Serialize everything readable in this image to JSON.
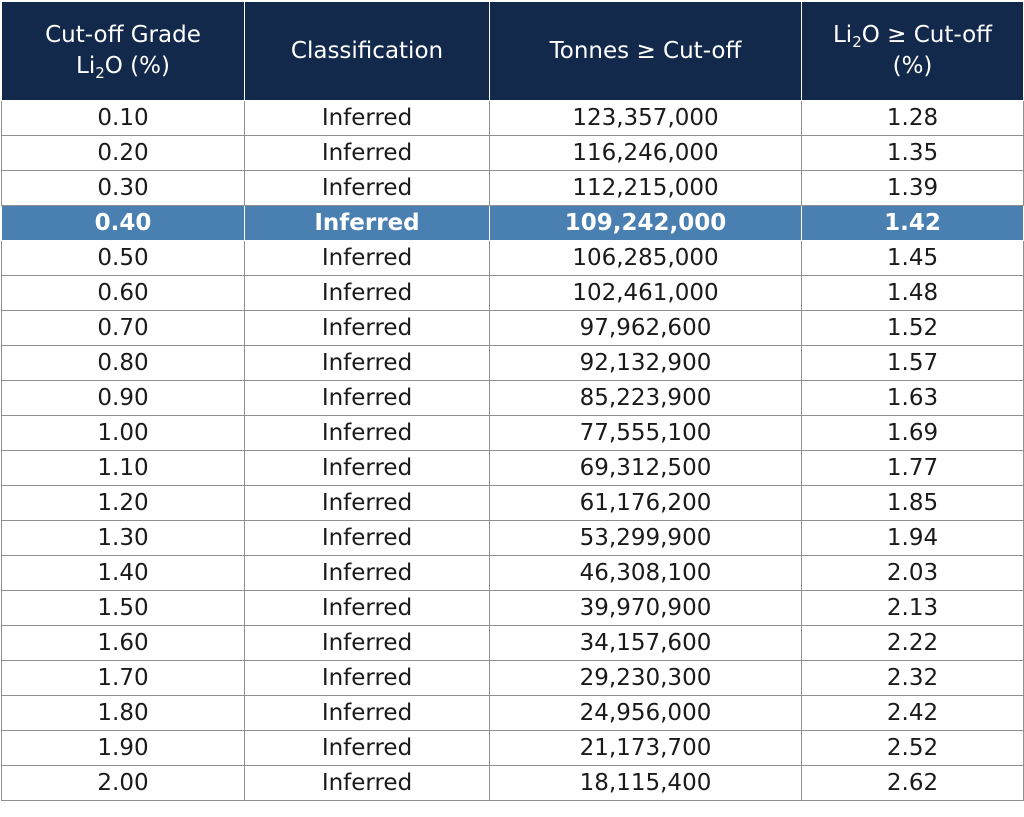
{
  "header": {
    "col1_line1": "Cut-off Grade",
    "col1_li": "Li",
    "col1_sub": "2",
    "col1_rest": "O (%)",
    "col2": "Classification",
    "col3": "Tonnes ≥ Cut-off",
    "col4_li": "Li",
    "col4_sub": "2",
    "col4_rest": "O ≥ Cut-off",
    "col4_line2": "(%)"
  },
  "highlight_color": "#4a7fb2",
  "header_color": "#13294b",
  "rows": [
    {
      "grade": "0.10",
      "classification": "Inferred",
      "tonnes": "123,357,000",
      "li2o": "1.28"
    },
    {
      "grade": "0.20",
      "classification": "Inferred",
      "tonnes": "116,246,000",
      "li2o": "1.35"
    },
    {
      "grade": "0.30",
      "classification": "Inferred",
      "tonnes": "112,215,000",
      "li2o": "1.39"
    },
    {
      "grade": "0.40",
      "classification": "Inferred",
      "tonnes": "109,242,000",
      "li2o": "1.42",
      "highlight": true
    },
    {
      "grade": "0.50",
      "classification": "Inferred",
      "tonnes": "106,285,000",
      "li2o": "1.45"
    },
    {
      "grade": "0.60",
      "classification": "Inferred",
      "tonnes": "102,461,000",
      "li2o": "1.48"
    },
    {
      "grade": "0.70",
      "classification": "Inferred",
      "tonnes": "97,962,600",
      "li2o": "1.52"
    },
    {
      "grade": "0.80",
      "classification": "Inferred",
      "tonnes": "92,132,900",
      "li2o": "1.57"
    },
    {
      "grade": "0.90",
      "classification": "Inferred",
      "tonnes": "85,223,900",
      "li2o": "1.63"
    },
    {
      "grade": "1.00",
      "classification": "Inferred",
      "tonnes": "77,555,100",
      "li2o": "1.69"
    },
    {
      "grade": "1.10",
      "classification": "Inferred",
      "tonnes": "69,312,500",
      "li2o": "1.77"
    },
    {
      "grade": "1.20",
      "classification": "Inferred",
      "tonnes": "61,176,200",
      "li2o": "1.85"
    },
    {
      "grade": "1.30",
      "classification": "Inferred",
      "tonnes": "53,299,900",
      "li2o": "1.94"
    },
    {
      "grade": "1.40",
      "classification": "Inferred",
      "tonnes": "46,308,100",
      "li2o": "2.03"
    },
    {
      "grade": "1.50",
      "classification": "Inferred",
      "tonnes": "39,970,900",
      "li2o": "2.13"
    },
    {
      "grade": "1.60",
      "classification": "Inferred",
      "tonnes": "34,157,600",
      "li2o": "2.22"
    },
    {
      "grade": "1.70",
      "classification": "Inferred",
      "tonnes": "29,230,300",
      "li2o": "2.32"
    },
    {
      "grade": "1.80",
      "classification": "Inferred",
      "tonnes": "24,956,000",
      "li2o": "2.42"
    },
    {
      "grade": "1.90",
      "classification": "Inferred",
      "tonnes": "21,173,700",
      "li2o": "2.52"
    },
    {
      "grade": "2.00",
      "classification": "Inferred",
      "tonnes": "18,115,400",
      "li2o": "2.62"
    }
  ]
}
